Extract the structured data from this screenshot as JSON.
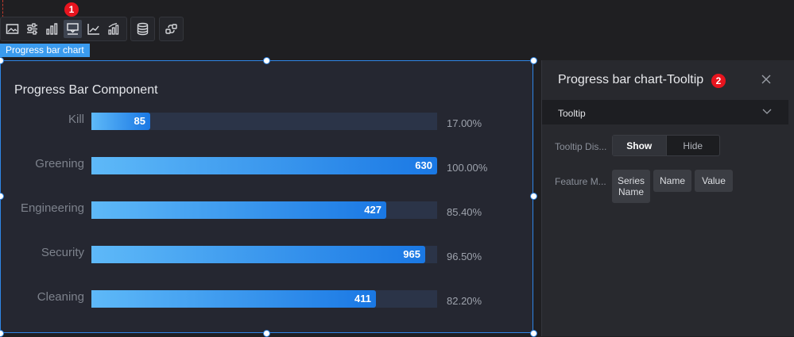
{
  "toolbar": {
    "group1": [
      {
        "icon": "image-icon"
      },
      {
        "icon": "sliders-icon"
      },
      {
        "icon": "bar-chart-icon"
      },
      {
        "icon": "tooltip-icon",
        "active": true
      },
      {
        "icon": "axis-icon"
      },
      {
        "icon": "series-icon"
      }
    ],
    "group2": [
      {
        "icon": "database-icon"
      }
    ],
    "group3": [
      {
        "icon": "interaction-icon"
      }
    ],
    "badge1": "1"
  },
  "component_tag": "Progress bar chart",
  "chart": {
    "title": "Progress Bar Component"
  },
  "chart_data": {
    "type": "bar",
    "orientation": "horizontal",
    "title": "Progress Bar Component",
    "categories": [
      "Kill",
      "Greening",
      "Engineering",
      "Security",
      "Cleaning"
    ],
    "values": [
      85,
      630,
      427,
      965,
      411
    ],
    "percentages": [
      "17.00%",
      "100.00%",
      "85.40%",
      "96.50%",
      "82.20%"
    ],
    "progress": [
      0.17,
      1.0,
      0.854,
      0.965,
      0.822
    ]
  },
  "panel": {
    "title": "Progress bar chart-Tooltip",
    "badge2": "2",
    "section": "Tooltip",
    "tooltip_display_label": "Tooltip Dis...",
    "toggle": {
      "show": "Show",
      "hide": "Hide",
      "selected": "Show"
    },
    "feature_label": "Feature M...",
    "chips": [
      "Series Name",
      "Name",
      "Value"
    ]
  }
}
